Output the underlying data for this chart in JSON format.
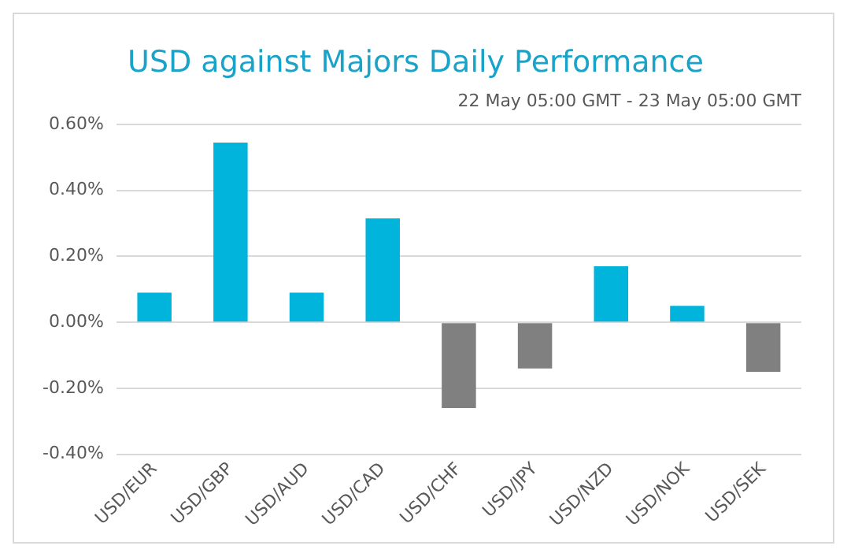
{
  "chart_data": {
    "type": "bar",
    "title": "USD against Majors Daily Performance",
    "subtitle": "22 May 05:00 GMT - 23 May 05:00 GMT",
    "categories": [
      "USD/EUR",
      "USD/GBP",
      "USD/AUD",
      "USD/CAD",
      "USD/CHF",
      "USD/JPY",
      "USD/NZD",
      "USD/NOK",
      "USD/SEK"
    ],
    "values": [
      0.09,
      0.545,
      0.09,
      0.315,
      -0.26,
      -0.14,
      0.17,
      0.05,
      -0.15
    ],
    "colors": [
      "#00b4dc",
      "#00b4dc",
      "#00b4dc",
      "#00b4dc",
      "#808080",
      "#808080",
      "#00b4dc",
      "#00b4dc",
      "#808080"
    ],
    "ylim": [
      -0.4,
      0.6
    ],
    "yticks": [
      {
        "value": -0.4,
        "label": "-0.40%"
      },
      {
        "value": -0.2,
        "label": "-0.20%"
      },
      {
        "value": 0,
        "label": "0.00%"
      },
      {
        "value": 0.2,
        "label": "0.20%"
      },
      {
        "value": 0.4,
        "label": "0.40%"
      },
      {
        "value": 0.6,
        "label": "0.60%"
      }
    ],
    "grid": "y",
    "legend": false
  }
}
